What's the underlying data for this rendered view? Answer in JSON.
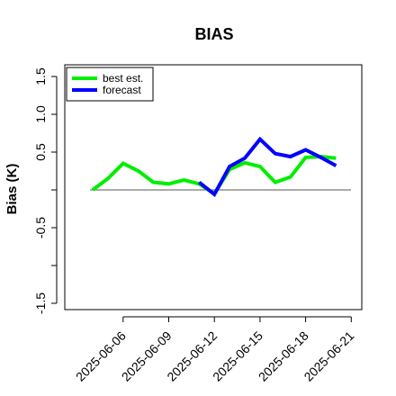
{
  "chart_data": {
    "type": "line",
    "title": "BIAS",
    "xlabel": "",
    "ylabel": "Bias (K)",
    "ylim": [
      -1.6,
      1.65
    ],
    "yticks": [
      -1.5,
      -1.0,
      -0.5,
      0.0,
      0.5,
      1.0,
      1.5
    ],
    "ytick_labels": [
      "-1.5",
      "",
      "-0.5",
      "",
      "0.5",
      "1.0",
      "1.5"
    ],
    "x": [
      "2025-06-04",
      "2025-06-05",
      "2025-06-06",
      "2025-06-07",
      "2025-06-08",
      "2025-06-09",
      "2025-06-10",
      "2025-06-11",
      "2025-06-12",
      "2025-06-13",
      "2025-06-14",
      "2025-06-15",
      "2025-06-16",
      "2025-06-17",
      "2025-06-18",
      "2025-06-19",
      "2025-06-20",
      "2025-06-21"
    ],
    "xticks": [
      "2025-06-06",
      "2025-06-09",
      "2025-06-12",
      "2025-06-15",
      "2025-06-18",
      "2025-06-21"
    ],
    "highlight_tick": "2025-06-12",
    "highlight_color": "#228b22",
    "reference_line": 0.0,
    "legend_position": "top-left",
    "series": [
      {
        "name": "best est.",
        "color": "#00ee00",
        "values": [
          0.0,
          0.15,
          0.35,
          0.25,
          0.1,
          0.08,
          0.13,
          0.08,
          -0.05,
          0.27,
          0.36,
          0.31,
          0.1,
          0.17,
          0.43,
          0.44,
          0.42,
          null
        ]
      },
      {
        "name": "forecast",
        "color": "#0000ff",
        "values": [
          null,
          null,
          null,
          null,
          null,
          null,
          null,
          0.1,
          -0.06,
          0.31,
          0.42,
          0.67,
          0.48,
          0.44,
          0.53,
          0.43,
          0.32,
          null
        ]
      }
    ]
  }
}
